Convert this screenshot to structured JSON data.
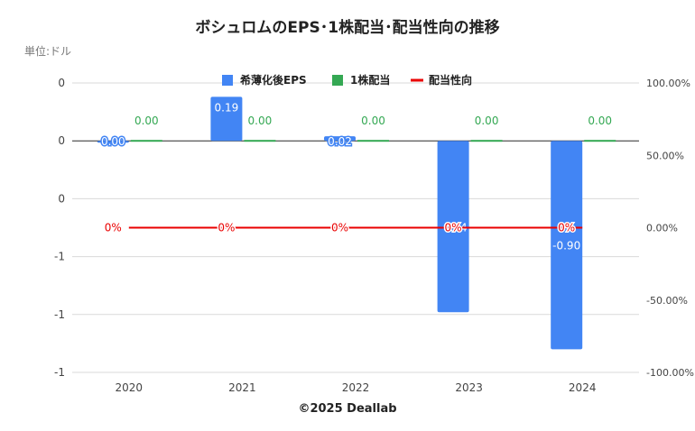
{
  "title": "ボシュロムのEPS･1株配当･配当性向の推移",
  "unit_label": "単位:ドル",
  "footer": "©2025 Deallab",
  "colors": {
    "eps": "#4285F4",
    "dividend": "#34A853",
    "payout": "#EA0000"
  },
  "chart_data": {
    "type": "bar",
    "categories": [
      "2020",
      "2021",
      "2022",
      "2023",
      "2024"
    ],
    "series": [
      {
        "name": "希薄化後EPS",
        "type": "bar",
        "values": [
          0.0,
          0.19,
          0.02,
          -0.74,
          -0.9
        ],
        "labels": [
          "0.00",
          "0.19",
          "0.02",
          "-0.74",
          "-0.90"
        ]
      },
      {
        "name": "1株配当",
        "type": "bar",
        "values": [
          0.0,
          0.0,
          0.0,
          0.0,
          0.0
        ],
        "labels": [
          "0.00",
          "0.00",
          "0.00",
          "0.00",
          "0.00"
        ]
      },
      {
        "name": "配当性向",
        "type": "line",
        "axis": "right",
        "values": [
          0,
          0,
          0,
          0,
          0
        ],
        "labels": [
          "0%",
          "0%",
          "0%",
          "0%",
          "0%"
        ]
      }
    ],
    "left_axis": {
      "ticks": [
        "0",
        "0",
        "0",
        "-1",
        "-1",
        "-1"
      ],
      "range": [
        -1.0,
        0.25
      ]
    },
    "right_axis": {
      "ticks": [
        "100.00%",
        "50.00%",
        "0.00%",
        "-50.00%",
        "-100.00%"
      ],
      "range": [
        -100,
        100
      ]
    },
    "legend_position": "top",
    "grid": true
  }
}
